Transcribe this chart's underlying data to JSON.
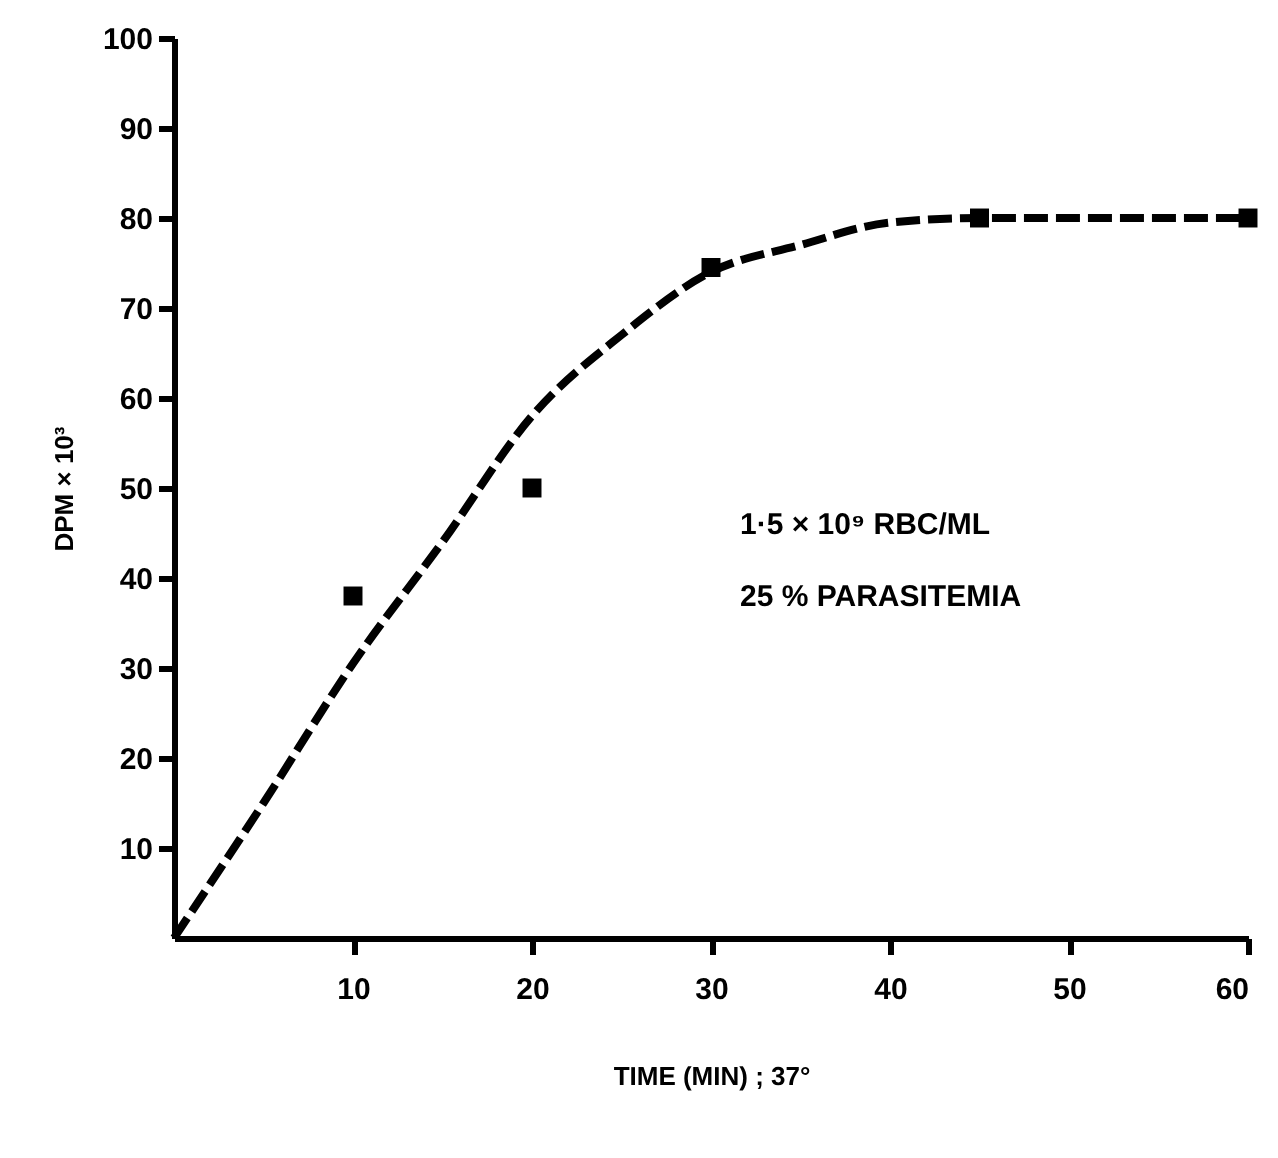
{
  "chart_data": {
    "type": "scatter",
    "xlabel": "TIME (MIN) ; 37°",
    "ylabel": "DPM × 10³",
    "annotations": [
      "1·5 × 10⁹ RBC/ML",
      "25 % PARASITEMIA"
    ],
    "xlim": [
      0,
      60
    ],
    "xticks": [
      10,
      20,
      30,
      40,
      50,
      60
    ],
    "ylim": [
      0,
      100
    ],
    "yticks": [
      10,
      20,
      30,
      40,
      50,
      60,
      70,
      80,
      90,
      100
    ],
    "grid": false,
    "series": [
      {
        "type": "line",
        "color": "#000000",
        "line_style": "dashed",
        "marker": "none",
        "x": [
          0,
          5,
          10,
          15,
          20,
          25,
          30,
          35,
          40,
          45,
          50,
          60
        ],
        "values": [
          0,
          15,
          30.5,
          44,
          58,
          67,
          74,
          77,
          79.5,
          80,
          80,
          80
        ]
      },
      {
        "color": "#000000",
        "marker": "square",
        "x": [
          10,
          20,
          30,
          45,
          60
        ],
        "values": [
          38,
          50,
          74.5,
          80,
          80
        ]
      }
    ]
  }
}
